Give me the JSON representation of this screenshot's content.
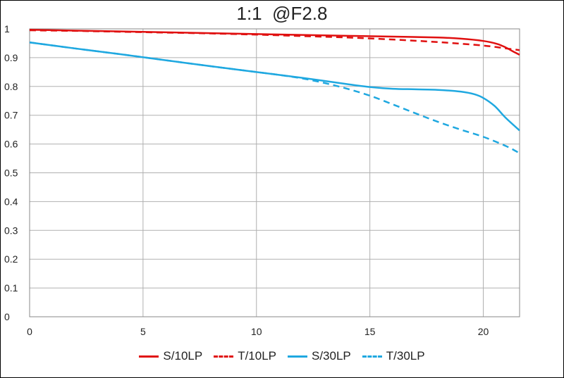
{
  "chart_data": {
    "type": "line",
    "title": "1:1  @F2.8",
    "xlabel": "",
    "ylabel": "",
    "xlim": [
      0,
      21.6
    ],
    "ylim": [
      0,
      1
    ],
    "x_ticks": [
      "0",
      "5",
      "10",
      "15",
      "20"
    ],
    "y_ticks": [
      "0",
      "0.1",
      "0.2",
      "0.3",
      "0.4",
      "0.5",
      "0.6",
      "0.7",
      "0.8",
      "0.9",
      "1"
    ],
    "grid": true,
    "legend_position": "bottom",
    "series": [
      {
        "name": "S/10LP",
        "color": "#e01010",
        "dash": "solid",
        "x": [
          0,
          2,
          4,
          6,
          8,
          10,
          12,
          14,
          16,
          18,
          19,
          20,
          20.6,
          21,
          21.3,
          21.6
        ],
        "y": [
          0.997,
          0.994,
          0.991,
          0.988,
          0.985,
          0.982,
          0.979,
          0.976,
          0.973,
          0.97,
          0.966,
          0.958,
          0.948,
          0.935,
          0.922,
          0.91
        ]
      },
      {
        "name": "T/10LP",
        "color": "#e01010",
        "dash": "dashed",
        "x": [
          0,
          2,
          4,
          6,
          8,
          10,
          12,
          14,
          16,
          18,
          20,
          21,
          21.6
        ],
        "y": [
          0.995,
          0.993,
          0.99,
          0.987,
          0.984,
          0.98,
          0.975,
          0.97,
          0.963,
          0.954,
          0.942,
          0.932,
          0.926
        ]
      },
      {
        "name": "S/30LP",
        "color": "#1fa8e0",
        "dash": "solid",
        "x": [
          0,
          2,
          4,
          6,
          8,
          10,
          12,
          14,
          15,
          16,
          17,
          18,
          19,
          19.6,
          20,
          20.5,
          21,
          21.6
        ],
        "y": [
          0.953,
          0.932,
          0.912,
          0.891,
          0.87,
          0.85,
          0.83,
          0.808,
          0.798,
          0.792,
          0.79,
          0.788,
          0.782,
          0.773,
          0.76,
          0.732,
          0.69,
          0.647
        ]
      },
      {
        "name": "T/30LP",
        "color": "#1fa8e0",
        "dash": "dashed",
        "x": [
          0,
          2,
          4,
          6,
          8,
          10,
          11,
          12,
          13,
          14,
          15,
          16,
          17,
          18,
          19,
          20,
          21,
          21.6
        ],
        "y": [
          0.953,
          0.932,
          0.912,
          0.891,
          0.87,
          0.85,
          0.84,
          0.828,
          0.812,
          0.792,
          0.768,
          0.738,
          0.707,
          0.677,
          0.65,
          0.625,
          0.593,
          0.568
        ]
      }
    ]
  }
}
